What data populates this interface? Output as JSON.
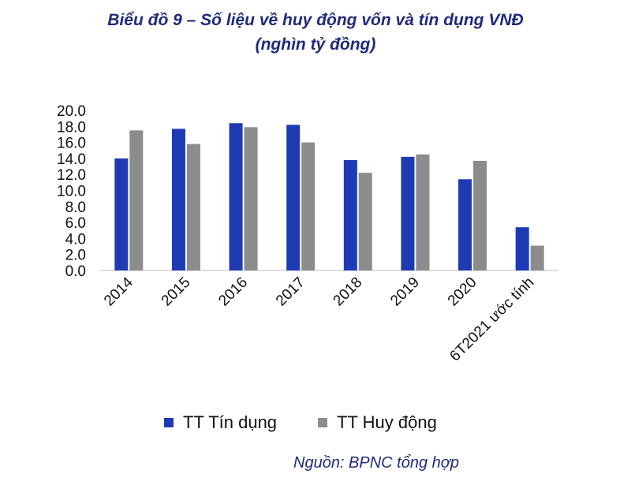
{
  "chart_data": {
    "type": "bar",
    "title_line1": "Biểu đồ 9 – Số liệu về huy động vốn và tín dụng VNĐ",
    "title_line2": "(nghìn tỷ đồng)",
    "categories": [
      "2014",
      "2015",
      "2016",
      "2017",
      "2018",
      "2019",
      "2020",
      "6T2021 ước tính"
    ],
    "series": [
      {
        "name": "TT Tín dụng",
        "color": "#1f3bb3",
        "values": [
          14.0,
          17.7,
          18.4,
          18.2,
          13.8,
          14.2,
          11.4,
          5.4
        ]
      },
      {
        "name": "TT Huy động",
        "color": "#8c8c8c",
        "values": [
          17.5,
          15.8,
          17.9,
          16.0,
          12.2,
          14.5,
          13.7,
          3.1
        ]
      }
    ],
    "ylim": [
      0,
      20
    ],
    "yticks": [
      "0.0",
      "2.0",
      "4.0",
      "6.0",
      "8.0",
      "10.0",
      "12.0",
      "14.0",
      "16.0",
      "18.0",
      "20.0"
    ],
    "grid": false,
    "legend_position": "bottom",
    "source": "Nguồn: BPNC tổng hợp"
  }
}
